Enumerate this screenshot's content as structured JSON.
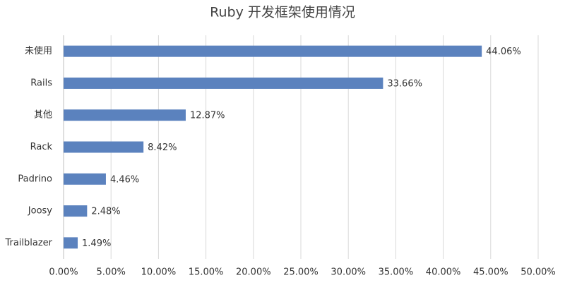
{
  "chart_data": {
    "type": "bar",
    "orientation": "horizontal",
    "title": "Ruby 开发框架使用情况",
    "categories": [
      "未使用",
      "Rails",
      "其他",
      "Rack",
      "Padrino",
      "Joosy",
      "Trailblazer"
    ],
    "values": [
      44.06,
      33.66,
      12.87,
      8.42,
      4.46,
      2.48,
      1.49
    ],
    "value_labels": [
      "44.06%",
      "33.66%",
      "12.87%",
      "8.42%",
      "4.46%",
      "2.48%",
      "1.49%"
    ],
    "color": "#5b82be",
    "xlim": [
      0,
      50
    ],
    "xticks": [
      {
        "value": 0,
        "label": "0.00%"
      },
      {
        "value": 5,
        "label": "5.00%"
      },
      {
        "value": 10,
        "label": "10.00%"
      },
      {
        "value": 15,
        "label": "15.00%"
      },
      {
        "value": 20,
        "label": "20.00%"
      },
      {
        "value": 25,
        "label": "25.00%"
      },
      {
        "value": 30,
        "label": "30.00%"
      },
      {
        "value": 35,
        "label": "35.00%"
      },
      {
        "value": 40,
        "label": "40.00%"
      },
      {
        "value": 45,
        "label": "45.00%"
      },
      {
        "value": 50,
        "label": "50.00%"
      }
    ],
    "grid": true
  }
}
